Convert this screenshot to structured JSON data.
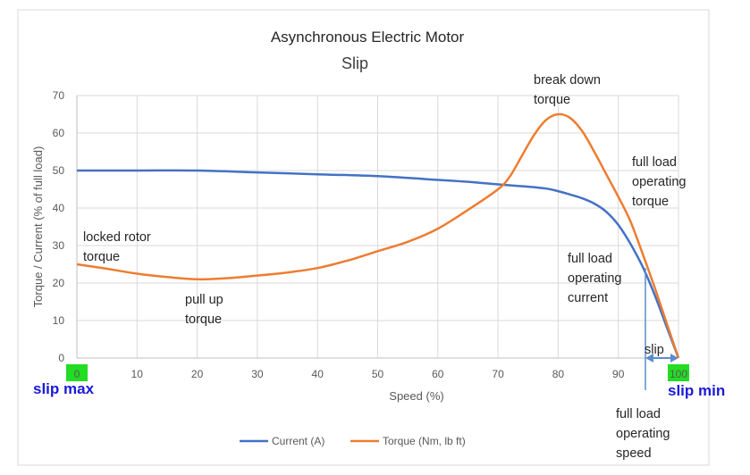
{
  "chart_data": {
    "type": "line",
    "title": "Asynchronous Electric Motor",
    "subtitle": "Slip",
    "xlabel": "Speed (%)",
    "ylabel": "Torque / Current (% of full load)",
    "xlim": [
      0,
      100
    ],
    "ylim": [
      0,
      70
    ],
    "x_ticks": [
      0,
      10,
      20,
      30,
      40,
      50,
      60,
      70,
      80,
      90,
      100
    ],
    "y_ticks": [
      0,
      10,
      20,
      30,
      40,
      50,
      60,
      70
    ],
    "grid": true,
    "legend_position": "bottom",
    "colors": {
      "current": "#4472C4",
      "torque": "#ED7D31",
      "highlight": "#22dd22",
      "blue_text": "#1a1adb",
      "slip_arrow": "#5b8bd0"
    },
    "series": [
      {
        "name": "Current (A)",
        "key": "current",
        "x": [
          0,
          10,
          20,
          30,
          40,
          50,
          60,
          65,
          70,
          75,
          78,
          80,
          82,
          84,
          86,
          88,
          90,
          92,
          94,
          96,
          98,
          100
        ],
        "y": [
          50,
          50,
          50,
          49.5,
          49,
          48.5,
          47.5,
          47,
          46.3,
          45.7,
          45.2,
          44.5,
          43.6,
          42.6,
          41.2,
          39,
          35.5,
          30.5,
          24.5,
          17,
          8.5,
          0
        ]
      },
      {
        "name": "Torque (Nm, lb ft)",
        "key": "torque",
        "x": [
          0,
          5,
          10,
          15,
          20,
          25,
          30,
          35,
          40,
          45,
          50,
          55,
          60,
          65,
          70,
          72,
          74,
          76,
          78,
          80,
          82,
          84,
          86,
          88,
          90,
          92,
          94,
          96,
          98,
          100
        ],
        "y": [
          25,
          23.8,
          22.5,
          21.6,
          21,
          21.3,
          22,
          22.8,
          24,
          26,
          28.5,
          31,
          34.5,
          39.5,
          45,
          48.5,
          54,
          59.5,
          63.5,
          65,
          64,
          60.5,
          55,
          49,
          43,
          36.5,
          28,
          19,
          9.5,
          0
        ]
      }
    ],
    "annotations": {
      "locked_rotor": [
        "locked rotor",
        "torque"
      ],
      "pull_up": [
        "pull up",
        "torque"
      ],
      "break_down": [
        "break down",
        "torque"
      ],
      "fl_torque": [
        "full load",
        "operating",
        "torque"
      ],
      "fl_current": [
        "full load",
        "operating",
        "current"
      ],
      "slip": "slip",
      "fl_speed": [
        "full load",
        "operating",
        "speed"
      ],
      "slip_max": "slip max",
      "slip_min": "slip min"
    },
    "full_load_speed": 94.5
  }
}
